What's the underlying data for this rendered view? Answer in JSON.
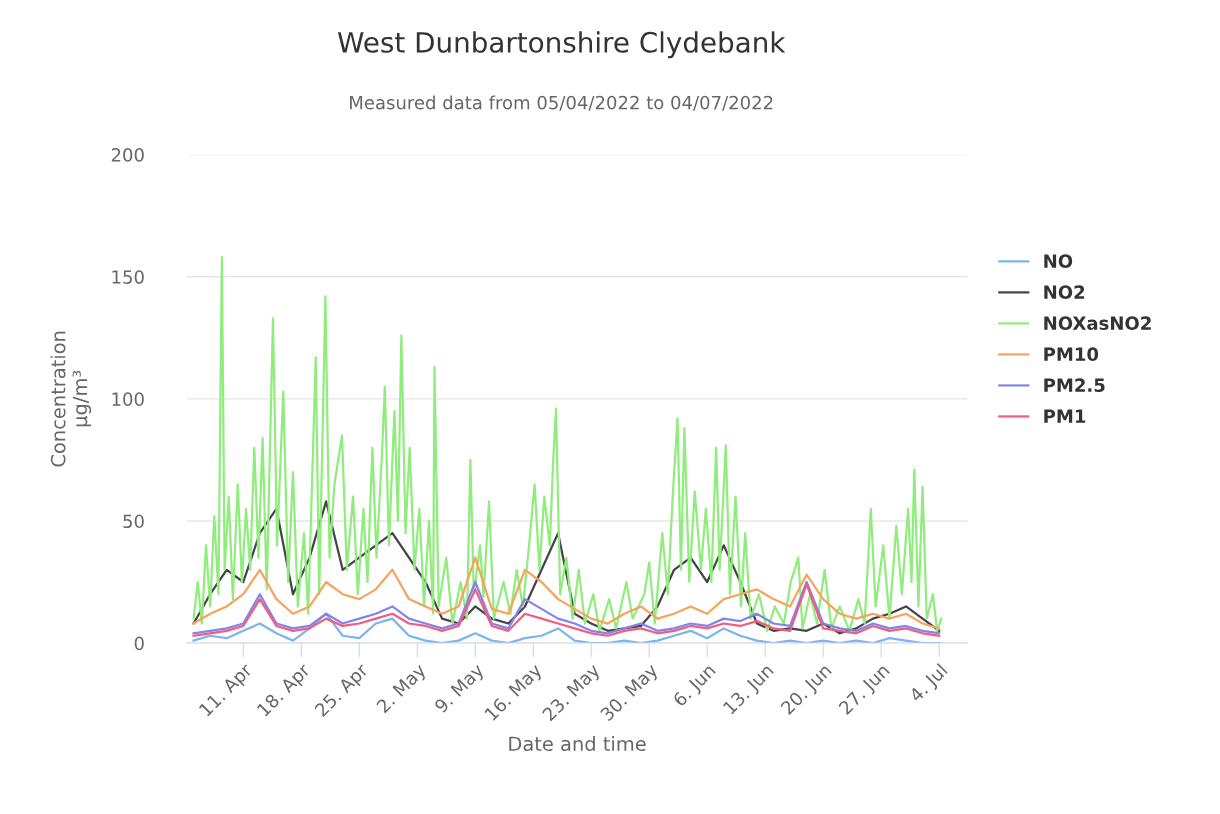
{
  "chart_data": {
    "type": "line",
    "title": "West Dunbartonshire Clydebank",
    "subtitle": "Measured data from 05/04/2022 to 04/07/2022",
    "xlabel": "Date and time",
    "ylabel": "Concentration\nμg/m³",
    "x": [
      "2022-04-05",
      "2022-04-07",
      "2022-04-09",
      "2022-04-11",
      "2022-04-13",
      "2022-04-15",
      "2022-04-17",
      "2022-04-19",
      "2022-04-21",
      "2022-04-23",
      "2022-04-25",
      "2022-04-27",
      "2022-04-29",
      "2022-05-01",
      "2022-05-03",
      "2022-05-05",
      "2022-05-07",
      "2022-05-09",
      "2022-05-11",
      "2022-05-13",
      "2022-05-15",
      "2022-05-17",
      "2022-05-19",
      "2022-05-21",
      "2022-05-23",
      "2022-05-25",
      "2022-05-27",
      "2022-05-29",
      "2022-05-31",
      "2022-06-02",
      "2022-06-04",
      "2022-06-06",
      "2022-06-08",
      "2022-06-10",
      "2022-06-12",
      "2022-06-14",
      "2022-06-16",
      "2022-06-18",
      "2022-06-20",
      "2022-06-22",
      "2022-06-24",
      "2022-06-26",
      "2022-06-28",
      "2022-06-30",
      "2022-07-02",
      "2022-07-04"
    ],
    "series": [
      {
        "name": "NO",
        "color": "#7cb5ec",
        "values": [
          1,
          3,
          2,
          5,
          8,
          4,
          1,
          6,
          12,
          3,
          2,
          8,
          10,
          3,
          1,
          0,
          1,
          4,
          1,
          0,
          2,
          3,
          6,
          1,
          0,
          0,
          1,
          0,
          1,
          3,
          5,
          2,
          6,
          3,
          1,
          0,
          1,
          0,
          1,
          0,
          1,
          0,
          2,
          1,
          0,
          0
        ]
      },
      {
        "name": "NO2",
        "color": "#434348",
        "values": [
          8,
          20,
          30,
          25,
          45,
          55,
          20,
          35,
          58,
          30,
          35,
          40,
          45,
          35,
          25,
          10,
          8,
          15,
          10,
          8,
          15,
          30,
          45,
          12,
          8,
          5,
          6,
          7,
          15,
          30,
          35,
          25,
          40,
          25,
          8,
          5,
          6,
          5,
          8,
          4,
          6,
          10,
          12,
          15,
          10,
          5
        ]
      },
      {
        "name": "NOXasNO2",
        "color": "#90ed7d",
        "x": [
          "2022-04-05T00:00",
          "2022-04-05T12:00",
          "2022-04-06T00:00",
          "2022-04-06T12:00",
          "2022-04-07T00:00",
          "2022-04-07T12:00",
          "2022-04-08T00:00",
          "2022-04-08T10:00",
          "2022-04-08T18:00",
          "2022-04-09T06:00",
          "2022-04-09T18:00",
          "2022-04-10T08:00",
          "2022-04-10T20:00",
          "2022-04-11T08:00",
          "2022-04-11T20:00",
          "2022-04-12T08:00",
          "2022-04-12T20:00",
          "2022-04-13T08:00",
          "2022-04-13T20:00",
          "2022-04-14T14:00",
          "2022-04-15T02:00",
          "2022-04-15T20:00",
          "2022-04-16T10:00",
          "2022-04-17T00:00",
          "2022-04-17T14:00",
          "2022-04-18T08:00",
          "2022-04-18T20:00",
          "2022-04-19T18:00",
          "2022-04-20T04:00",
          "2022-04-20T22:00",
          "2022-04-21T10:00",
          "2022-04-22T00:00",
          "2022-04-22T22:00",
          "2022-04-23T12:00",
          "2022-04-24T06:00",
          "2022-04-24T20:00",
          "2022-04-25T12:00",
          "2022-04-26T00:00",
          "2022-04-26T14:00",
          "2022-04-27T02:00",
          "2022-04-27T18:00",
          "2022-04-28T02:00",
          "2022-04-28T14:00",
          "2022-04-29T06:00",
          "2022-04-29T16:00",
          "2022-04-30T02:00",
          "2022-04-30T14:00",
          "2022-05-01T02:00",
          "2022-05-01T16:00",
          "2022-05-02T06:00",
          "2022-05-02T20:00",
          "2022-05-03T10:00",
          "2022-05-03T22:00",
          "2022-05-04T02:00",
          "2022-05-04T14:00",
          "2022-05-05T12:00",
          "2022-05-06T06:00",
          "2022-05-07T06:00",
          "2022-05-08T00:00",
          "2022-05-08T10:00",
          "2022-05-08T20:00",
          "2022-05-09T14:00",
          "2022-05-10T00:00",
          "2022-05-10T16:00",
          "2022-05-11T06:00",
          "2022-05-12T10:00",
          "2022-05-13T06:00",
          "2022-05-14T00:00",
          "2022-05-14T18:00",
          "2022-05-15T12:00",
          "2022-05-16T04:00",
          "2022-05-16T18:00",
          "2022-05-17T08:00",
          "2022-05-18T00:00",
          "2022-05-18T10:00",
          "2022-05-18T18:00",
          "2022-05-19T06:00",
          "2022-05-20T00:00",
          "2022-05-20T18:00",
          "2022-05-21T12:00",
          "2022-05-22T06:00",
          "2022-05-23T06:00",
          "2022-05-24T00:00",
          "2022-05-25T04:00",
          "2022-05-26T00:00",
          "2022-05-27T06:00",
          "2022-05-28T00:00",
          "2022-05-29T10:00",
          "2022-05-30T00:00",
          "2022-05-30T16:00",
          "2022-05-31T14:00",
          "2022-06-01T06:00",
          "2022-06-01T20:00",
          "2022-06-02T10:00",
          "2022-06-02T20:00",
          "2022-06-03T06:00",
          "2022-06-03T20:00",
          "2022-06-04T12:00",
          "2022-06-05T06:00",
          "2022-06-05T20:00",
          "2022-06-06T12:00",
          "2022-06-07T02:00",
          "2022-06-07T12:00",
          "2022-06-08T06:00",
          "2022-06-08T18:00",
          "2022-06-09T10:00",
          "2022-06-10T02:00",
          "2022-06-10T14:00",
          "2022-06-11T06:00",
          "2022-06-12T06:00",
          "2022-06-13T06:00",
          "2022-06-14T04:00",
          "2022-06-15T06:00",
          "2022-06-16T02:00",
          "2022-06-17T00:00",
          "2022-06-17T12:00",
          "2022-06-18T10:00",
          "2022-06-19T06:00",
          "2022-06-20T04:00",
          "2022-06-21T00:00",
          "2022-06-22T00:00",
          "2022-06-23T04:00",
          "2022-06-24T06:00",
          "2022-06-25T00:00",
          "2022-06-25T18:00",
          "2022-06-26T08:00",
          "2022-06-27T06:00",
          "2022-06-28T00:00",
          "2022-06-28T20:00",
          "2022-06-29T12:00",
          "2022-06-30T06:00",
          "2022-06-30T16:00",
          "2022-07-01T00:00",
          "2022-07-01T12:00",
          "2022-07-02T00:00",
          "2022-07-02T12:00",
          "2022-07-03T06:00",
          "2022-07-03T18:00",
          "2022-07-04T06:00"
        ],
        "values": [
          10,
          25,
          8,
          40,
          15,
          52,
          20,
          158,
          30,
          60,
          18,
          65,
          25,
          55,
          30,
          80,
          35,
          84,
          22,
          133,
          40,
          103,
          25,
          70,
          15,
          45,
          12,
          117,
          20,
          142,
          35,
          65,
          85,
          30,
          60,
          20,
          55,
          25,
          80,
          35,
          78,
          105,
          40,
          95,
          50,
          126,
          45,
          80,
          30,
          55,
          15,
          50,
          12,
          113,
          15,
          35,
          8,
          25,
          10,
          75,
          20,
          40,
          19,
          58,
          10,
          25,
          12,
          30,
          15,
          40,
          65,
          30,
          60,
          40,
          75,
          96,
          20,
          35,
          10,
          30,
          8,
          20,
          5,
          18,
          6,
          25,
          10,
          20,
          33,
          8,
          45,
          20,
          60,
          92,
          30,
          88,
          25,
          62,
          30,
          55,
          25,
          80,
          30,
          81,
          20,
          60,
          15,
          45,
          10,
          20,
          5,
          15,
          8,
          25,
          35,
          6,
          20,
          8,
          30,
          6,
          15,
          5,
          18,
          8,
          55,
          15,
          40,
          10,
          48,
          20,
          55,
          25,
          71,
          15,
          64,
          10,
          20,
          5,
          10
        ]
      },
      {
        "name": "PM10",
        "color": "#f7a35c",
        "values": [
          8,
          12,
          15,
          20,
          30,
          18,
          12,
          15,
          25,
          20,
          18,
          22,
          30,
          18,
          15,
          12,
          15,
          35,
          14,
          12,
          30,
          25,
          18,
          14,
          10,
          8,
          12,
          15,
          10,
          12,
          15,
          12,
          18,
          20,
          22,
          18,
          15,
          28,
          18,
          12,
          10,
          12,
          10,
          12,
          8,
          6
        ]
      },
      {
        "name": "PM2.5",
        "color": "#8085e9",
        "values": [
          4,
          5,
          6,
          8,
          20,
          8,
          6,
          7,
          12,
          8,
          10,
          12,
          15,
          10,
          8,
          6,
          8,
          25,
          8,
          6,
          18,
          14,
          10,
          8,
          5,
          4,
          6,
          8,
          5,
          6,
          8,
          7,
          10,
          9,
          12,
          8,
          7,
          25,
          8,
          6,
          5,
          8,
          6,
          7,
          5,
          4
        ]
      },
      {
        "name": "PM1",
        "color": "#f15c80",
        "values": [
          3,
          4,
          5,
          7,
          18,
          7,
          5,
          6,
          10,
          7,
          8,
          10,
          12,
          8,
          7,
          5,
          7,
          22,
          7,
          5,
          12,
          10,
          8,
          6,
          4,
          3,
          5,
          6,
          4,
          5,
          7,
          6,
          8,
          7,
          9,
          6,
          5,
          24,
          6,
          5,
          4,
          7,
          5,
          6,
          4,
          3
        ]
      }
    ],
    "xlim": [
      "2022-04-04T04:00",
      "2022-07-07T10:00"
    ],
    "xticks": [
      {
        "value": "2022-04-11",
        "label": "11. Apr"
      },
      {
        "value": "2022-04-18",
        "label": "18. Apr"
      },
      {
        "value": "2022-04-25",
        "label": "25. Apr"
      },
      {
        "value": "2022-05-02",
        "label": "2. May"
      },
      {
        "value": "2022-05-09",
        "label": "9. May"
      },
      {
        "value": "2022-05-16",
        "label": "16. May"
      },
      {
        "value": "2022-05-23",
        "label": "23. May"
      },
      {
        "value": "2022-05-30",
        "label": "30. May"
      },
      {
        "value": "2022-06-06",
        "label": "6. Jun"
      },
      {
        "value": "2022-06-13",
        "label": "13. Jun"
      },
      {
        "value": "2022-06-20",
        "label": "20. Jun"
      },
      {
        "value": "2022-06-27",
        "label": "27. Jun"
      },
      {
        "value": "2022-07-04",
        "label": "4. Jul"
      }
    ],
    "ylim": [
      0,
      200
    ],
    "yticks": [
      0,
      50,
      100,
      150,
      200
    ],
    "grid": "y",
    "legend": "right",
    "marker": "none",
    "line_style": "solid"
  }
}
